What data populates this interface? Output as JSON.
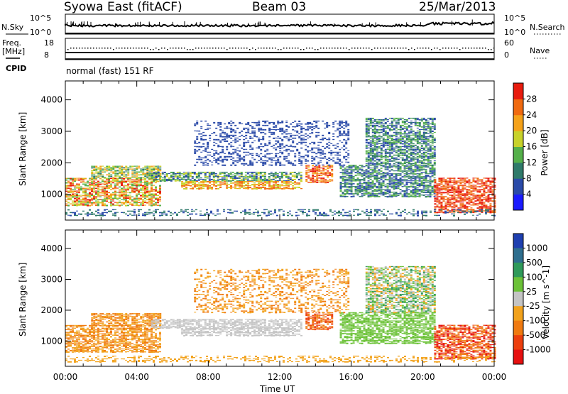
{
  "header": {
    "station": "Syowa East (fitACF)",
    "beam": "Beam 03",
    "date": "25/Mar/2013"
  },
  "strip_labels": {
    "nsky": "N.Sky",
    "nsearch": "N.Search",
    "freq_line1": "Freq.",
    "freq_line2": "[MHz]",
    "nave": "Nave",
    "cpid": "CPID",
    "cpid_value": "normal (fast) 151 RF",
    "nsky_top": "10^5",
    "nsky_bottom": "10^0",
    "nsearch_top": "10^5",
    "nsearch_bottom": "10^0",
    "freq_top": "18",
    "freq_bottom": "8",
    "nave_top": "60",
    "nave_bottom": "0"
  },
  "chart_data": [
    {
      "type": "heatmap",
      "panel": "power",
      "ylabel": "Slant Range [km]",
      "yticks": [
        "1000",
        "2000",
        "3000",
        "4000"
      ],
      "ylim": [
        180,
        4600
      ],
      "colorbar_label": "Power [dB]",
      "colorbar_ticks": [
        "4",
        "8",
        "12",
        "16",
        "20",
        "24",
        "28"
      ],
      "colorbar_range": [
        0,
        32
      ],
      "colors": [
        "#1a1aff",
        "#2a4aa8",
        "#2f7a6a",
        "#55b04a",
        "#c8d22a",
        "#f5a21a",
        "#f06a10",
        "#e81b0e"
      ]
    },
    {
      "type": "heatmap",
      "panel": "velocity",
      "ylabel": "Slant Range [km]",
      "yticks": [
        "1000",
        "2000",
        "3000",
        "4000"
      ],
      "ylim": [
        180,
        4600
      ],
      "colorbar_label": "Velocity [m s^-1]",
      "colorbar_ticks": [
        "1000",
        "500",
        "100",
        "25",
        "-25",
        "-100",
        "-500",
        "-1000"
      ],
      "colors": [
        "#1e3fb0",
        "#2e6e8e",
        "#2f9a5a",
        "#6cc238",
        "#c4c4c4",
        "#f2a21c",
        "#f07a10",
        "#ec3f0e",
        "#e61010"
      ]
    }
  ],
  "xaxis": {
    "label": "Time UT",
    "ticks": [
      "00:00",
      "04:00",
      "08:00",
      "12:00",
      "16:00",
      "20:00",
      "00:00"
    ]
  }
}
